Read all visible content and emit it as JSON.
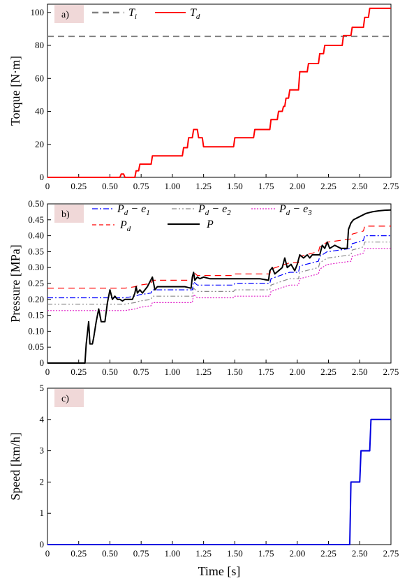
{
  "chart_data": [
    {
      "type": "line",
      "panel_label": "a)",
      "ylabel": "Torque [N·m]",
      "xlabel": "",
      "xlim": [
        0,
        2.75
      ],
      "ylim": [
        0,
        105
      ],
      "xticks": [
        0,
        0.25,
        0.5,
        0.75,
        1.0,
        1.25,
        1.5,
        1.75,
        2.0,
        2.25,
        2.5,
        2.75
      ],
      "xtick_labels": [
        "0",
        "0.25",
        "0.50",
        "0.75",
        "1.00",
        "1.25",
        "1.50",
        "1.75",
        "2.00",
        "2.25",
        "2.50",
        "2.75"
      ],
      "yticks": [
        0,
        20,
        40,
        60,
        80,
        100
      ],
      "ytick_labels": [
        "0",
        "20",
        "40",
        "60",
        "80",
        "100"
      ],
      "legend": "top",
      "series": [
        {
          "name": "T_i",
          "color": "#808080",
          "dash": "dashed",
          "x": [
            0,
            2.75
          ],
          "y": [
            85.5,
            85.5
          ]
        },
        {
          "name": "T_d",
          "color": "#ff0000",
          "dash": "solid",
          "x": [
            0,
            0.58,
            0.59,
            0.61,
            0.62,
            0.7,
            0.71,
            0.73,
            0.74,
            0.83,
            0.84,
            1.08,
            1.09,
            1.12,
            1.13,
            1.16,
            1.17,
            1.2,
            1.21,
            1.24,
            1.25,
            1.49,
            1.5,
            1.65,
            1.66,
            1.78,
            1.79,
            1.84,
            1.85,
            1.88,
            1.89,
            1.9,
            1.91,
            1.93,
            1.94,
            2.01,
            2.02,
            2.08,
            2.09,
            2.12,
            2.13,
            2.17,
            2.18,
            2.21,
            2.22,
            2.24,
            2.25,
            2.27,
            2.28,
            2.36,
            2.37,
            2.43,
            2.44,
            2.53,
            2.54,
            2.57,
            2.58,
            2.75
          ],
          "y": [
            0,
            0,
            2,
            2,
            0,
            0,
            4,
            4,
            8,
            8,
            13,
            13,
            18,
            18,
            24,
            24,
            29,
            29,
            24,
            24,
            18.5,
            18.5,
            24,
            24,
            29,
            29,
            35,
            35,
            40,
            40,
            43,
            43,
            48,
            48,
            53,
            53,
            64,
            64,
            69,
            69,
            69,
            69,
            75,
            75,
            80,
            80,
            80,
            80,
            80,
            80,
            86,
            86,
            91,
            91,
            97,
            97,
            102.5,
            102.5
          ]
        }
      ]
    },
    {
      "type": "line",
      "panel_label": "b)",
      "ylabel": "Pressure [MPa]",
      "xlabel": "",
      "xlim": [
        0,
        2.75
      ],
      "ylim": [
        0,
        0.5
      ],
      "xticks": [
        0,
        0.25,
        0.5,
        0.75,
        1.0,
        1.25,
        1.5,
        1.75,
        2.0,
        2.25,
        2.5,
        2.75
      ],
      "xtick_labels": [
        "0",
        "0.25",
        "0.50",
        "0.75",
        "1.00",
        "1.25",
        "1.50",
        "1.75",
        "2.00",
        "2.25",
        "2.50",
        "2.75"
      ],
      "yticks": [
        0,
        0.05,
        0.1,
        0.15,
        0.2,
        0.25,
        0.3,
        0.35,
        0.4,
        0.45,
        0.5
      ],
      "ytick_labels": [
        "0",
        "0.05",
        "0.10",
        "0.15",
        "0.20",
        "0.25",
        "0.30",
        "0.35",
        "0.40",
        "0.45",
        "0.50"
      ],
      "legend": "top",
      "series": [
        {
          "name": "P_d - e_1",
          "color": "#0000ff",
          "dash": "dashdot",
          "x": [
            0,
            0.58,
            0.62,
            0.7,
            0.74,
            0.83,
            0.84,
            1.16,
            1.17,
            1.2,
            1.24,
            1.49,
            1.5,
            1.78,
            1.79,
            1.9,
            1.94,
            2.01,
            2.02,
            2.17,
            2.18,
            2.24,
            2.25,
            2.43,
            2.44,
            2.53,
            2.54,
            2.75
          ],
          "y": [
            0.205,
            0.205,
            0.205,
            0.21,
            0.215,
            0.22,
            0.23,
            0.23,
            0.255,
            0.245,
            0.245,
            0.245,
            0.25,
            0.25,
            0.265,
            0.28,
            0.285,
            0.285,
            0.305,
            0.32,
            0.335,
            0.35,
            0.35,
            0.36,
            0.375,
            0.385,
            0.4,
            0.4
          ]
        },
        {
          "name": "P_d - e_2",
          "color": "#8a8a8a",
          "dash": "dashdotdot",
          "x": [
            0,
            0.58,
            0.62,
            0.7,
            0.74,
            0.83,
            0.84,
            1.16,
            1.17,
            1.2,
            1.24,
            1.49,
            1.5,
            1.78,
            1.79,
            1.9,
            1.94,
            2.01,
            2.02,
            2.17,
            2.18,
            2.24,
            2.25,
            2.43,
            2.44,
            2.53,
            2.54,
            2.75
          ],
          "y": [
            0.185,
            0.185,
            0.185,
            0.19,
            0.195,
            0.2,
            0.21,
            0.21,
            0.235,
            0.225,
            0.225,
            0.225,
            0.23,
            0.23,
            0.245,
            0.26,
            0.265,
            0.265,
            0.285,
            0.3,
            0.315,
            0.33,
            0.33,
            0.34,
            0.355,
            0.365,
            0.38,
            0.38
          ]
        },
        {
          "name": "P_d - e_3",
          "color": "#e020c8",
          "dash": "dotted",
          "x": [
            0,
            0.58,
            0.62,
            0.7,
            0.74,
            0.83,
            0.84,
            1.16,
            1.17,
            1.2,
            1.24,
            1.49,
            1.5,
            1.78,
            1.79,
            1.9,
            1.94,
            2.01,
            2.02,
            2.17,
            2.18,
            2.24,
            2.25,
            2.43,
            2.44,
            2.53,
            2.54,
            2.75
          ],
          "y": [
            0.165,
            0.165,
            0.165,
            0.17,
            0.175,
            0.18,
            0.19,
            0.19,
            0.215,
            0.205,
            0.205,
            0.205,
            0.21,
            0.21,
            0.225,
            0.24,
            0.245,
            0.245,
            0.265,
            0.28,
            0.295,
            0.31,
            0.31,
            0.32,
            0.335,
            0.345,
            0.36,
            0.36
          ]
        },
        {
          "name": "P_d",
          "color": "#ff0000",
          "dash": "dashed",
          "x": [
            0,
            0.58,
            0.62,
            0.7,
            0.74,
            0.83,
            0.84,
            1.16,
            1.17,
            1.2,
            1.24,
            1.49,
            1.5,
            1.78,
            1.79,
            1.9,
            1.94,
            2.01,
            2.02,
            2.17,
            2.18,
            2.24,
            2.25,
            2.43,
            2.44,
            2.53,
            2.54,
            2.75
          ],
          "y": [
            0.235,
            0.235,
            0.235,
            0.24,
            0.245,
            0.25,
            0.26,
            0.26,
            0.285,
            0.275,
            0.275,
            0.275,
            0.28,
            0.28,
            0.295,
            0.31,
            0.315,
            0.315,
            0.335,
            0.35,
            0.365,
            0.38,
            0.38,
            0.39,
            0.405,
            0.415,
            0.43,
            0.43
          ]
        },
        {
          "name": "P",
          "color": "#000000",
          "dash": "solid",
          "x": [
            0,
            0.3,
            0.31,
            0.33,
            0.34,
            0.36,
            0.37,
            0.39,
            0.41,
            0.43,
            0.44,
            0.46,
            0.48,
            0.5,
            0.52,
            0.54,
            0.56,
            0.58,
            0.6,
            0.62,
            0.65,
            0.68,
            0.7,
            0.71,
            0.72,
            0.74,
            0.76,
            0.8,
            0.84,
            0.86,
            0.88,
            0.9,
            0.95,
            1.0,
            1.05,
            1.1,
            1.15,
            1.16,
            1.17,
            1.18,
            1.2,
            1.22,
            1.25,
            1.3,
            1.4,
            1.5,
            1.6,
            1.7,
            1.77,
            1.78,
            1.8,
            1.82,
            1.85,
            1.88,
            1.9,
            1.92,
            1.95,
            1.98,
            2.0,
            2.02,
            2.05,
            2.08,
            2.1,
            2.12,
            2.15,
            2.18,
            2.2,
            2.22,
            2.24,
            2.26,
            2.3,
            2.35,
            2.4,
            2.41,
            2.43,
            2.45,
            2.5,
            2.55,
            2.6,
            2.65,
            2.7,
            2.75
          ],
          "y": [
            0,
            0,
            0.06,
            0.13,
            0.06,
            0.06,
            0.08,
            0.13,
            0.17,
            0.13,
            0.13,
            0.13,
            0.19,
            0.23,
            0.2,
            0.21,
            0.2,
            0.2,
            0.195,
            0.2,
            0.2,
            0.2,
            0.22,
            0.24,
            0.22,
            0.23,
            0.22,
            0.24,
            0.27,
            0.23,
            0.24,
            0.24,
            0.24,
            0.24,
            0.24,
            0.24,
            0.235,
            0.27,
            0.285,
            0.26,
            0.27,
            0.265,
            0.27,
            0.265,
            0.265,
            0.265,
            0.265,
            0.265,
            0.26,
            0.29,
            0.3,
            0.28,
            0.29,
            0.3,
            0.33,
            0.3,
            0.31,
            0.29,
            0.31,
            0.34,
            0.33,
            0.34,
            0.33,
            0.34,
            0.34,
            0.34,
            0.37,
            0.36,
            0.38,
            0.36,
            0.37,
            0.36,
            0.36,
            0.42,
            0.44,
            0.45,
            0.46,
            0.47,
            0.475,
            0.478,
            0.48,
            0.481
          ]
        }
      ]
    },
    {
      "type": "line",
      "panel_label": "c)",
      "ylabel": "Speed [km/h]",
      "xlabel": "Time [s]",
      "xlim": [
        0,
        2.75
      ],
      "ylim": [
        0,
        5
      ],
      "xticks": [
        0,
        0.25,
        0.5,
        0.75,
        1.0,
        1.25,
        1.5,
        1.75,
        2.0,
        2.25,
        2.5,
        2.75
      ],
      "xtick_labels": [
        "0",
        "0.25",
        "0.50",
        "0.75",
        "1.00",
        "1.25",
        "1.50",
        "1.75",
        "2.00",
        "2.25",
        "2.50",
        "2.75"
      ],
      "yticks": [
        0,
        1,
        2,
        3,
        4,
        5
      ],
      "ytick_labels": [
        "0",
        "1",
        "2",
        "3",
        "4",
        "5"
      ],
      "legend": "none",
      "series": [
        {
          "name": "",
          "color": "#0000e0",
          "dash": "solid",
          "x": [
            0,
            2.42,
            2.43,
            2.5,
            2.51,
            2.58,
            2.59,
            2.75
          ],
          "y": [
            0,
            0,
            2,
            2,
            3,
            3,
            4,
            4
          ]
        }
      ]
    }
  ]
}
